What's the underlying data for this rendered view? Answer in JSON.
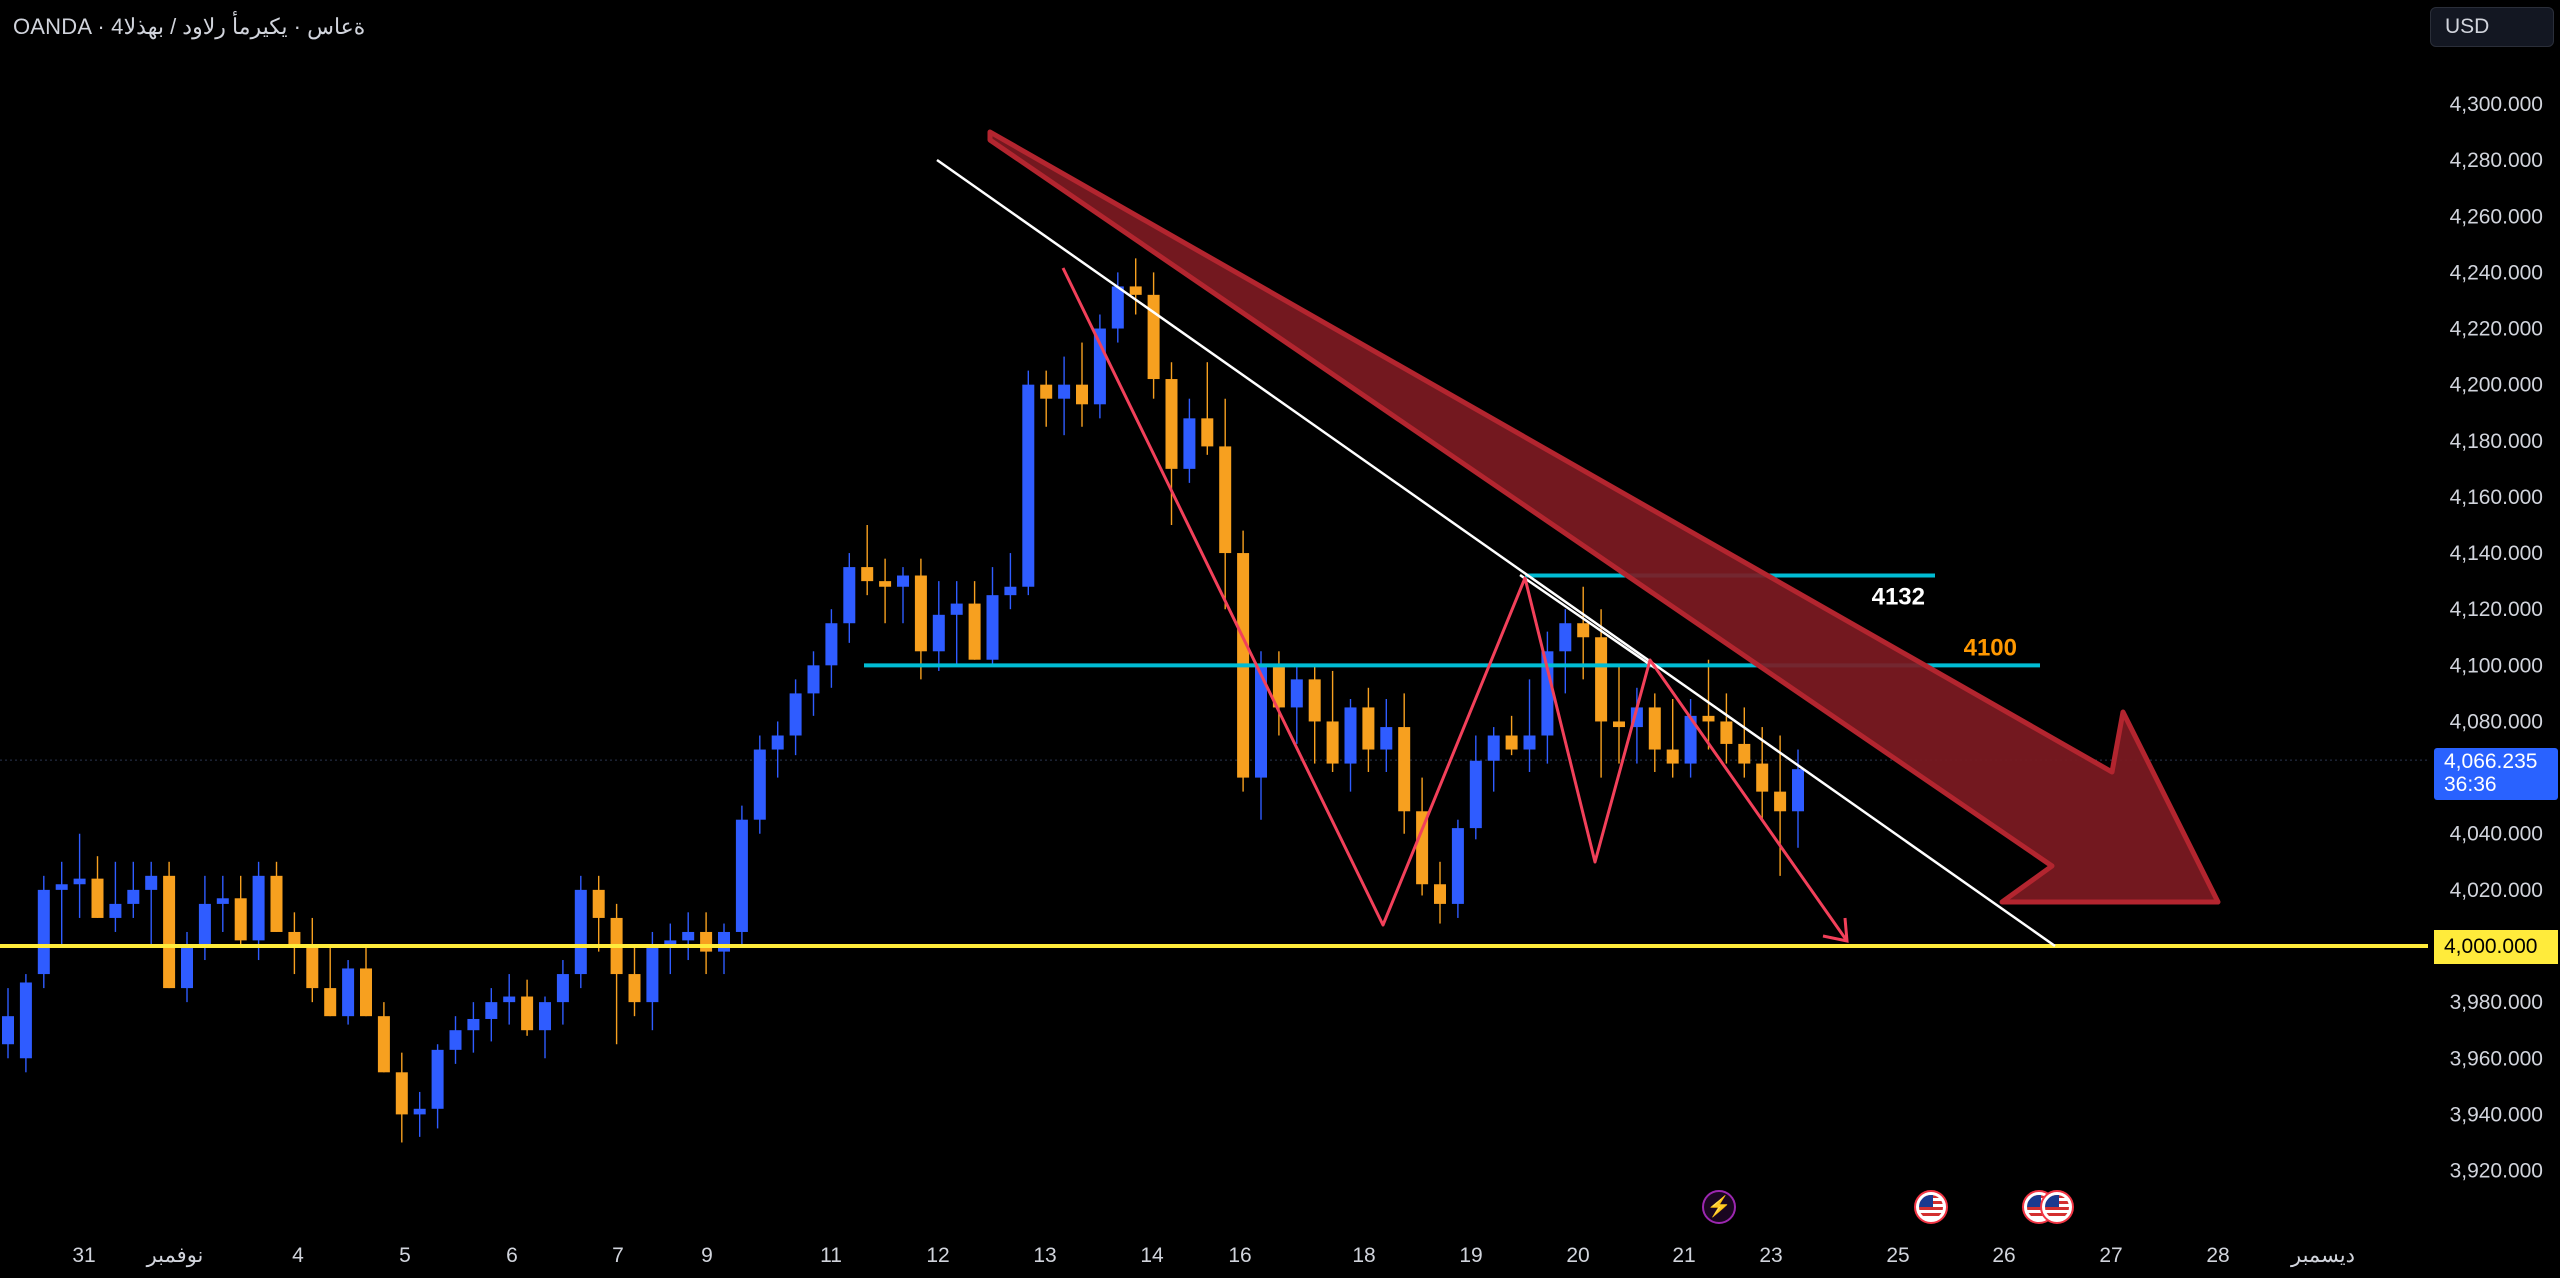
{
  "header": {
    "title": "OANDA · 4ةعاس · يكيرمأ رلاود / بهذلا",
    "currency": "USD"
  },
  "price_axis": {
    "labels": [
      "4,300.000",
      "4,280.000",
      "4,260.000",
      "4,240.000",
      "4,220.000",
      "4,200.000",
      "4,180.000",
      "4,160.000",
      "4,140.000",
      "4,120.000",
      "4,100.000",
      "4,080.000",
      "4,040.000",
      "4,020.000",
      "3,980.000",
      "3,960.000",
      "3,940.000",
      "3,920.000"
    ],
    "current_price": "4,066.235",
    "countdown": "36:36",
    "level_tag": "4,000.000"
  },
  "time_axis": {
    "labels": [
      "31",
      "نوفمبر",
      "4",
      "5",
      "6",
      "7",
      "9",
      "11",
      "12",
      "13",
      "14",
      "16",
      "18",
      "19",
      "20",
      "21",
      "23",
      "25",
      "26",
      "27",
      "28",
      "ديسمبر"
    ]
  },
  "annotations": {
    "level_4132": "4132",
    "level_4100": "4100"
  },
  "colors": {
    "up_candle": "#2f5cff",
    "down_candle": "#f7a01f",
    "support_line": "#ffeb3b",
    "resistance_lines": "#00bcd4",
    "zigzag": "#f2405a",
    "arrow_fill": "#7d1a22",
    "trendline": "#ffffff",
    "label_4100": "#ff9800"
  },
  "events": [
    "flash-event-icon",
    "us-flag-icon",
    "us-flag-icon",
    "us-flag-icon"
  ],
  "chart_data": {
    "type": "candlestick",
    "y_range": [
      3910,
      4312
    ],
    "candles": [
      [
        3965,
        3985,
        3960,
        3975
      ],
      [
        3960,
        3990,
        3955,
        3987
      ],
      [
        3990,
        4025,
        3985,
        4020
      ],
      [
        4020,
        4030,
        4000,
        4022
      ],
      [
        4022,
        4040,
        4010,
        4024
      ],
      [
        4024,
        4032,
        4010,
        4010
      ],
      [
        4010,
        4030,
        4005,
        4015
      ],
      [
        4015,
        4030,
        4010,
        4020
      ],
      [
        4020,
        4030,
        4000,
        4025
      ],
      [
        4025,
        4030,
        3985,
        3985
      ],
      [
        3985,
        4005,
        3980,
        4000
      ],
      [
        4000,
        4025,
        3995,
        4015
      ],
      [
        4015,
        4025,
        4005,
        4017
      ],
      [
        4017,
        4025,
        4000,
        4002
      ],
      [
        4002,
        4030,
        3995,
        4025
      ],
      [
        4025,
        4030,
        4005,
        4005
      ],
      [
        4005,
        4012,
        3990,
        4000
      ],
      [
        4000,
        4010,
        3980,
        3985
      ],
      [
        3985,
        4000,
        3975,
        3975
      ],
      [
        3975,
        3995,
        3972,
        3992
      ],
      [
        3992,
        4000,
        3975,
        3975
      ],
      [
        3975,
        3980,
        3955,
        3955
      ],
      [
        3955,
        3962,
        3930,
        3940
      ],
      [
        3940,
        3948,
        3932,
        3942
      ],
      [
        3942,
        3965,
        3935,
        3963
      ],
      [
        3963,
        3975,
        3958,
        3970
      ],
      [
        3970,
        3980,
        3962,
        3974
      ],
      [
        3974,
        3985,
        3966,
        3980
      ],
      [
        3980,
        3990,
        3972,
        3982
      ],
      [
        3982,
        3988,
        3968,
        3970
      ],
      [
        3970,
        3982,
        3960,
        3980
      ],
      [
        3980,
        3995,
        3972,
        3990
      ],
      [
        3990,
        4025,
        3985,
        4020
      ],
      [
        4020,
        4025,
        3998,
        4010
      ],
      [
        4010,
        4015,
        3965,
        3990
      ],
      [
        3990,
        4000,
        3975,
        3980
      ],
      [
        3980,
        4005,
        3970,
        4000
      ],
      [
        4000,
        4008,
        3990,
        4002
      ],
      [
        4002,
        4012,
        3995,
        4005
      ],
      [
        4005,
        4012,
        3990,
        3998
      ],
      [
        3998,
        4008,
        3990,
        4005
      ],
      [
        4005,
        4050,
        4000,
        4045
      ],
      [
        4045,
        4075,
        4040,
        4070
      ],
      [
        4070,
        4080,
        4060,
        4075
      ],
      [
        4075,
        4095,
        4068,
        4090
      ],
      [
        4090,
        4105,
        4082,
        4100
      ],
      [
        4100,
        4120,
        4092,
        4115
      ],
      [
        4115,
        4140,
        4108,
        4135
      ],
      [
        4135,
        4150,
        4125,
        4130
      ],
      [
        4130,
        4138,
        4115,
        4128
      ],
      [
        4128,
        4135,
        4115,
        4132
      ],
      [
        4132,
        4138,
        4095,
        4105
      ],
      [
        4105,
        4130,
        4098,
        4118
      ],
      [
        4118,
        4130,
        4100,
        4122
      ],
      [
        4122,
        4130,
        4102,
        4102
      ],
      [
        4102,
        4135,
        4100,
        4125
      ],
      [
        4125,
        4140,
        4120,
        4128
      ],
      [
        4128,
        4205,
        4125,
        4200
      ],
      [
        4200,
        4205,
        4185,
        4195
      ],
      [
        4195,
        4210,
        4182,
        4200
      ],
      [
        4200,
        4215,
        4185,
        4193
      ],
      [
        4193,
        4225,
        4188,
        4220
      ],
      [
        4220,
        4240,
        4215,
        4235
      ],
      [
        4235,
        4245,
        4225,
        4232
      ],
      [
        4232,
        4240,
        4195,
        4202
      ],
      [
        4202,
        4208,
        4150,
        4170
      ],
      [
        4170,
        4195,
        4165,
        4188
      ],
      [
        4188,
        4208,
        4175,
        4178
      ],
      [
        4178,
        4195,
        4120,
        4140
      ],
      [
        4140,
        4148,
        4055,
        4060
      ],
      [
        4060,
        4105,
        4045,
        4100
      ],
      [
        4100,
        4105,
        4075,
        4085
      ],
      [
        4085,
        4100,
        4072,
        4095
      ],
      [
        4095,
        4100,
        4065,
        4080
      ],
      [
        4080,
        4098,
        4062,
        4065
      ],
      [
        4065,
        4088,
        4055,
        4085
      ],
      [
        4085,
        4092,
        4062,
        4070
      ],
      [
        4070,
        4088,
        4062,
        4078
      ],
      [
        4078,
        4090,
        4040,
        4048
      ],
      [
        4048,
        4060,
        4018,
        4022
      ],
      [
        4022,
        4030,
        4008,
        4015
      ],
      [
        4015,
        4045,
        4010,
        4042
      ],
      [
        4042,
        4075,
        4038,
        4066
      ],
      [
        4066,
        4078,
        4055,
        4075
      ],
      [
        4075,
        4082,
        4068,
        4070
      ],
      [
        4070,
        4095,
        4062,
        4075
      ],
      [
        4075,
        4112,
        4065,
        4105
      ],
      [
        4105,
        4120,
        4090,
        4115
      ],
      [
        4115,
        4128,
        4095,
        4110
      ],
      [
        4110,
        4120,
        4060,
        4080
      ],
      [
        4080,
        4100,
        4065,
        4078
      ],
      [
        4078,
        4092,
        4065,
        4085
      ],
      [
        4085,
        4090,
        4062,
        4070
      ],
      [
        4070,
        4088,
        4060,
        4065
      ],
      [
        4065,
        4088,
        4060,
        4082
      ],
      [
        4082,
        4102,
        4070,
        4080
      ],
      [
        4080,
        4090,
        4065,
        4072
      ],
      [
        4072,
        4085,
        4060,
        4065
      ],
      [
        4065,
        4078,
        4045,
        4055
      ],
      [
        4055,
        4075,
        4025,
        4048
      ],
      [
        4048,
        4070,
        4035,
        4063
      ]
    ],
    "horizontal_levels": [
      4000,
      4100,
      4132
    ],
    "last_price": 4066.235
  }
}
